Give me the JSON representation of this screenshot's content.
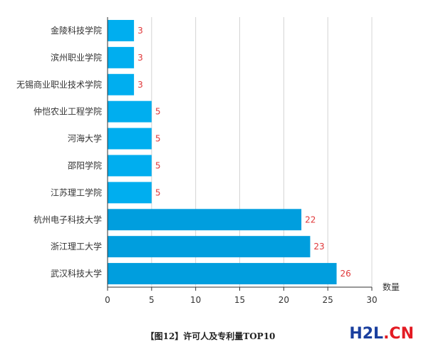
{
  "chart_data": {
    "type": "bar",
    "orientation": "horizontal",
    "categories": [
      "金陵科技学院",
      "滨州职业学院",
      "无锡商业职业技术学院",
      "仲恺农业工程学院",
      "河海大学",
      "邵阳学院",
      "江苏理工学院",
      "杭州电子科技大学",
      "浙江理工大学",
      "武汉科技大学"
    ],
    "values": [
      3,
      3,
      3,
      5,
      5,
      5,
      5,
      22,
      23,
      26
    ],
    "xlabel": "数量",
    "xlim": [
      0,
      30
    ],
    "xticks": [
      0,
      5,
      10,
      15,
      20,
      25,
      30
    ],
    "grid": true,
    "colors": {
      "bar_light": "#00aeef",
      "bar_dark": "#009ede",
      "data_label": "#e0383a"
    }
  },
  "caption": "【图12】许可人及专利量TOP10",
  "watermark": {
    "part1": "H2L",
    "part2": ".CN"
  }
}
